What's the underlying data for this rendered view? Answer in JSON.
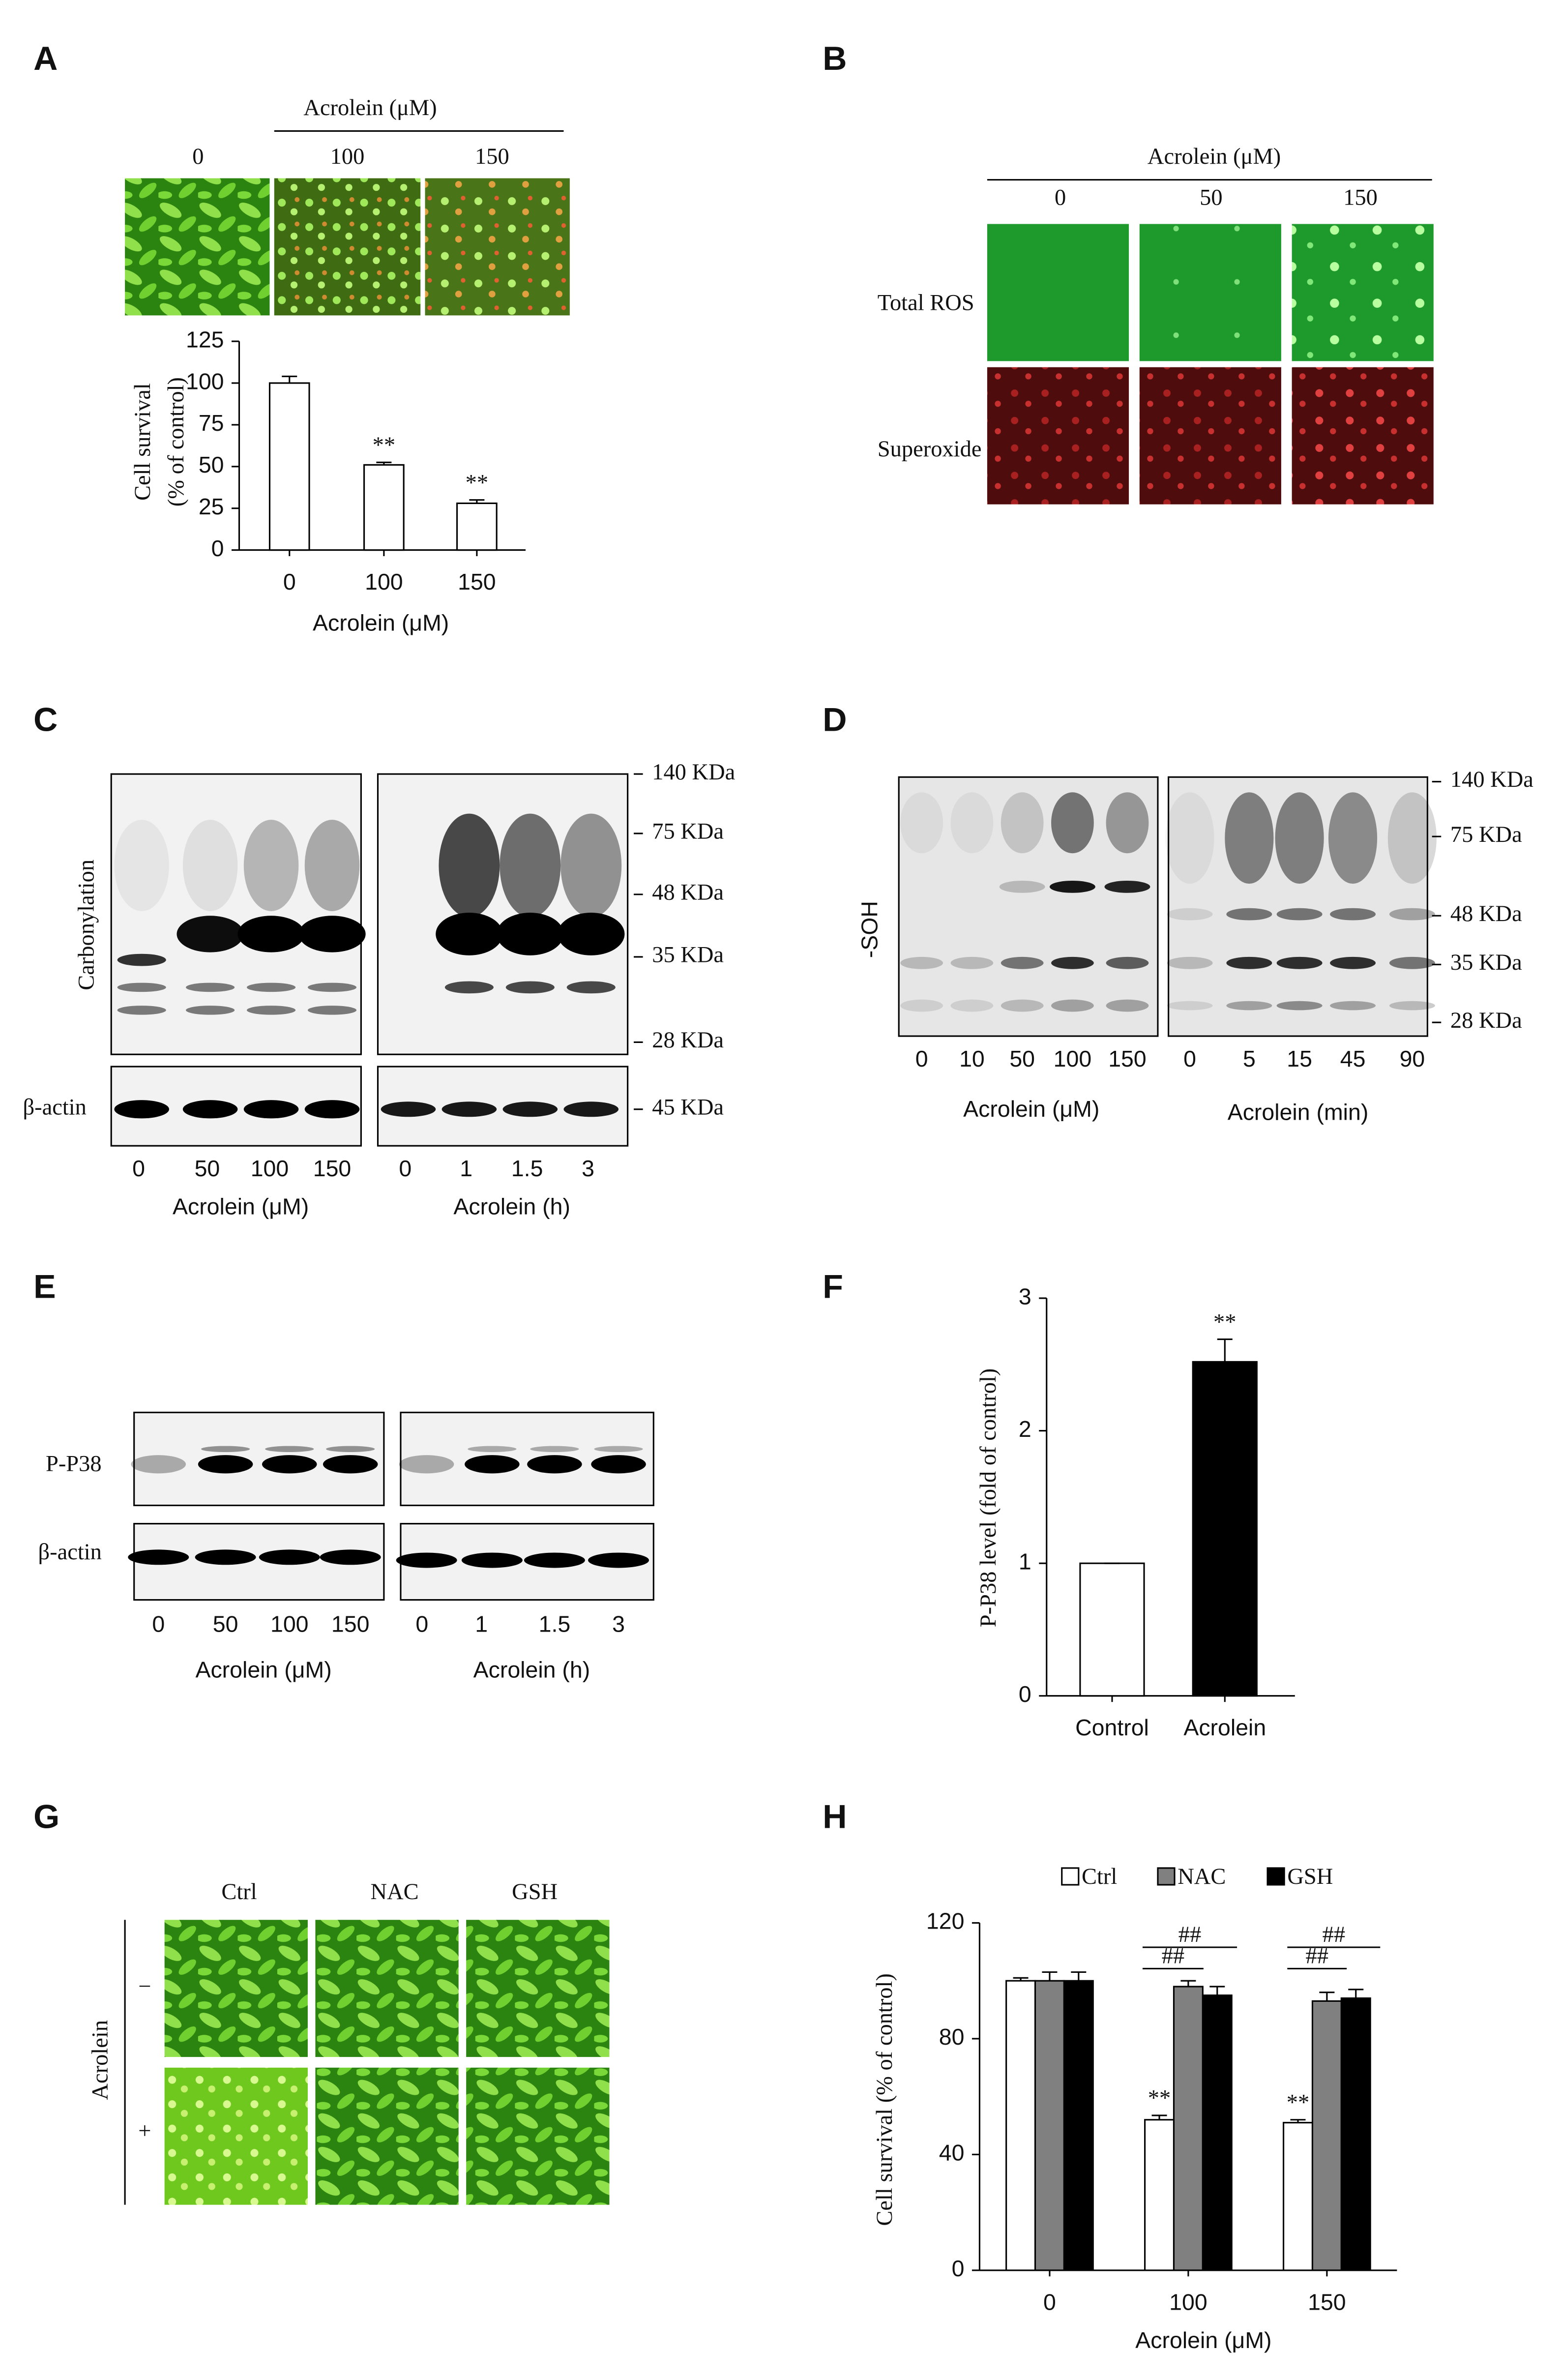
{
  "panels": {
    "labels": [
      "A",
      "B",
      "C",
      "D",
      "E",
      "F",
      "G",
      "H"
    ],
    "A": {
      "header": "Acrolein (μM)",
      "lanes": [
        "0",
        "100",
        "150"
      ]
    },
    "B": {
      "header": "Acrolein (μM)",
      "columns": [
        "0",
        "50",
        "150"
      ],
      "rows": [
        "Total ROS",
        "Superoxide"
      ]
    },
    "C": {
      "blot_label": "Carbonylation",
      "loading_label": "β-actin",
      "markers": [
        "140 KDa",
        "75 KDa",
        "48 KDa",
        "35 KDa",
        "28 KDa"
      ],
      "loading_marker": "45 KDa",
      "left_lanes": [
        "0",
        "50",
        "100",
        "150"
      ],
      "left_label": "Acrolein (μM)",
      "right_lanes": [
        "0",
        "1",
        "1.5",
        "3"
      ],
      "right_label": "Acrolein (h)"
    },
    "D": {
      "blot_label": "-SOH",
      "markers": [
        "140 KDa",
        "75 KDa",
        "48 KDa",
        "35 KDa",
        "28 KDa"
      ],
      "left_lanes": [
        "0",
        "10",
        "50",
        "100",
        "150"
      ],
      "left_label": "Acrolein (μM)",
      "right_lanes": [
        "0",
        "5",
        "15",
        "45",
        "90"
      ],
      "right_label": "Acrolein (min)"
    },
    "E": {
      "blot_label": "P-P38",
      "loading_label": "β-actin",
      "left_lanes": [
        "0",
        "50",
        "100",
        "150"
      ],
      "left_label": "Acrolein (μM)",
      "right_lanes": [
        "0",
        "1",
        "1.5",
        "3"
      ],
      "right_label": "Acrolein (h)"
    },
    "G": {
      "columns": [
        "Ctrl",
        "NAC",
        "GSH"
      ],
      "side_label": "Acrolein",
      "rows": [
        "−",
        "+"
      ]
    }
  },
  "chart_data": [
    {
      "type": "bar",
      "ylabel": [
        "Cell survival",
        "(% of control)"
      ],
      "xlabel": "Acrolein (μM)",
      "categories": [
        "0",
        "100",
        "150"
      ],
      "values": [
        100,
        51,
        28
      ],
      "errors": [
        4,
        1.5,
        2
      ],
      "significance": [
        null,
        "**",
        "**"
      ],
      "color": "#ffffff",
      "ylim": [
        0,
        125
      ],
      "yticks": [
        0,
        25,
        50,
        75,
        100,
        125
      ]
    },
    {
      "type": "bar",
      "ylabel": "P-P38 level  (fold of control)",
      "categories": [
        "Control",
        "Acrolein"
      ],
      "values": [
        1,
        2.52
      ],
      "errors": [
        0,
        0.17
      ],
      "significance": [
        null,
        "**"
      ],
      "colors": [
        "#ffffff",
        "#000000"
      ],
      "ylim": [
        0,
        3
      ],
      "yticks": [
        0,
        1,
        2,
        3
      ]
    },
    {
      "type": "grouped-bar",
      "ylabel": "Cell survival (% of control)",
      "xlabel": "Acrolein (μM)",
      "categories": [
        "0",
        "100",
        "150"
      ],
      "series": [
        {
          "name": "Ctrl",
          "color": "#ffffff",
          "values": [
            100,
            52,
            51
          ],
          "errors": [
            1,
            1.5,
            1
          ],
          "significance": [
            null,
            "**",
            "**"
          ]
        },
        {
          "name": "NAC",
          "color": "#808080",
          "values": [
            100,
            98,
            93
          ],
          "errors": [
            3,
            2,
            3
          ]
        },
        {
          "name": "GSH",
          "color": "#000000",
          "values": [
            100,
            95,
            94
          ],
          "errors": [
            3,
            3,
            3
          ]
        }
      ],
      "brackets": [
        "##",
        "##",
        "##",
        "##"
      ],
      "ylim": [
        0,
        120
      ],
      "yticks": [
        0,
        40,
        80,
        120
      ]
    }
  ]
}
